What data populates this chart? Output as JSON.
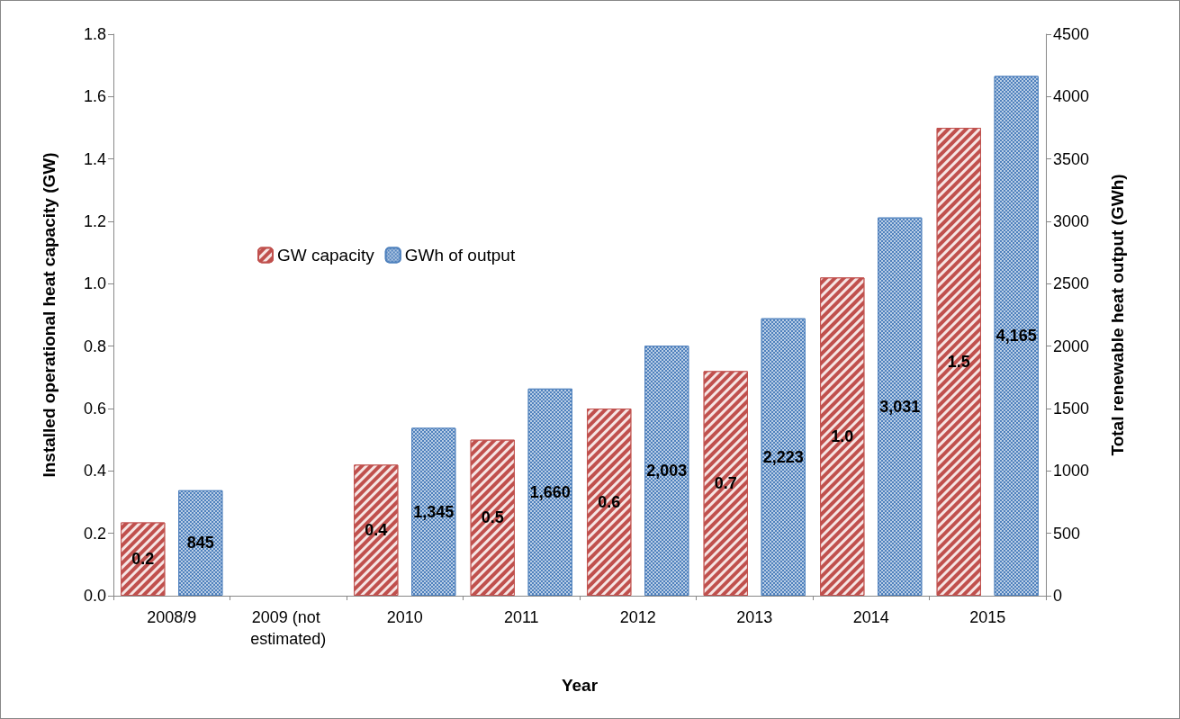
{
  "chart_data": {
    "type": "bar",
    "xlabel": "Year",
    "ylabel": "Installed operational heat capacity (GW)",
    "y2label": "Total renewable heat output (GWh)",
    "categories": [
      "2008/9",
      "2009 (not estimated)",
      "2010",
      "2011",
      "2012",
      "2013",
      "2014",
      "2015"
    ],
    "series": [
      {
        "name": "GW capacity",
        "color": "#c0504d",
        "values": [
          0.235,
          null,
          0.42,
          0.5,
          0.6,
          0.72,
          1.02,
          1.5
        ],
        "value_labels": [
          "0.2",
          null,
          "0.4",
          "0.5",
          "0.6",
          "0.7",
          "1.0",
          "1.5"
        ]
      },
      {
        "name": "GWh of output",
        "color": "#4f81bd",
        "axis": "y2",
        "values": [
          845,
          null,
          1345,
          1660,
          2003,
          2223,
          3031,
          4165
        ],
        "value_labels": [
          "845",
          null,
          "1,345",
          "1,660",
          "2,003",
          "2,223",
          "3,031",
          "4,165"
        ]
      }
    ],
    "ylim": [
      0,
      1.8
    ],
    "yticks": [
      {
        "value": 0,
        "label": "0.0"
      },
      {
        "value": 0.2,
        "label": "0.2"
      },
      {
        "value": 0.4,
        "label": "0.4"
      },
      {
        "value": 0.6,
        "label": "0.6"
      },
      {
        "value": 0.8,
        "label": "0.8"
      },
      {
        "value": 1.0,
        "label": "1.0"
      },
      {
        "value": 1.2,
        "label": "1.2"
      },
      {
        "value": 1.4,
        "label": "1.4"
      },
      {
        "value": 1.6,
        "label": "1.6"
      },
      {
        "value": 1.8,
        "label": "1.8"
      }
    ],
    "y2lim": [
      0,
      4500
    ],
    "y2ticks": [
      0,
      500,
      1000,
      1500,
      2000,
      2500,
      3000,
      3500,
      4000,
      4500
    ],
    "grid": false,
    "legend": "top left"
  }
}
